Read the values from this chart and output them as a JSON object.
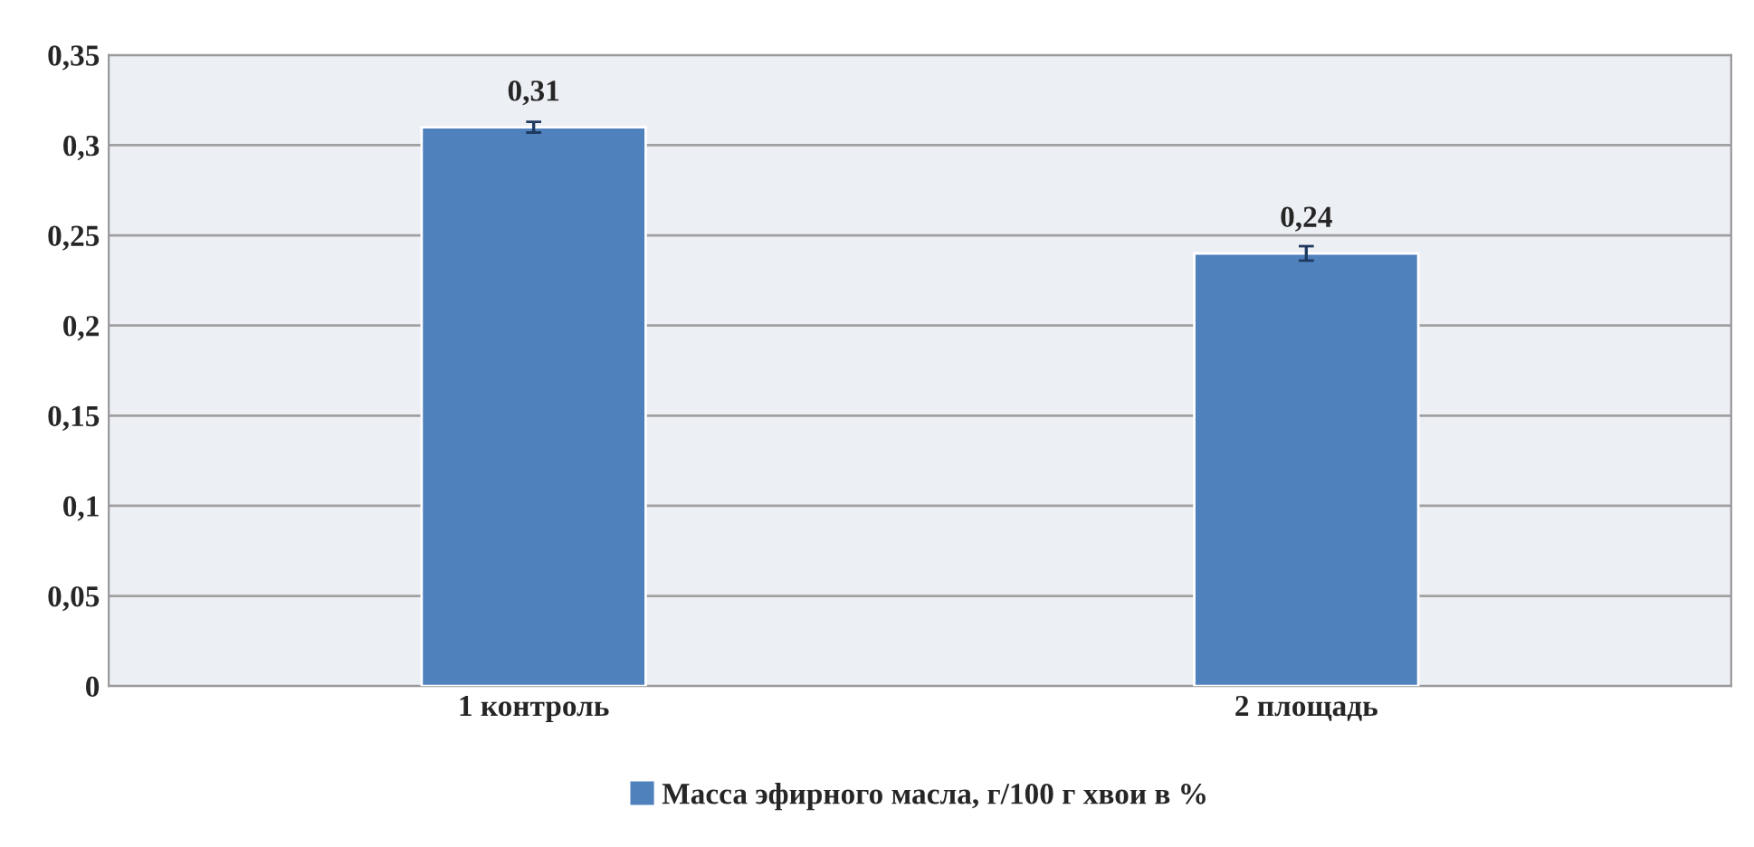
{
  "chart_data": {
    "type": "bar",
    "categories": [
      "1 контроль",
      "2 площадь"
    ],
    "series": [
      {
        "name": "Масса эфирного масла, г/100 г хвои в %",
        "color": "#4f81bd",
        "values": [
          0.31,
          0.24
        ],
        "errors": [
          0.003,
          0.004
        ],
        "value_labels": [
          "0,31",
          "0,24"
        ]
      }
    ],
    "ylim": [
      0,
      0.35
    ],
    "yticks": [
      {
        "value": 0,
        "label": "0"
      },
      {
        "value": 0.05,
        "label": "0,05"
      },
      {
        "value": 0.1,
        "label": "0,1"
      },
      {
        "value": 0.15,
        "label": "0,15"
      },
      {
        "value": 0.2,
        "label": "0,2"
      },
      {
        "value": 0.25,
        "label": "0,25"
      },
      {
        "value": 0.3,
        "label": "0,3"
      },
      {
        "value": 0.35,
        "label": "0,35"
      }
    ],
    "grid": "y",
    "legend": "bottom"
  }
}
